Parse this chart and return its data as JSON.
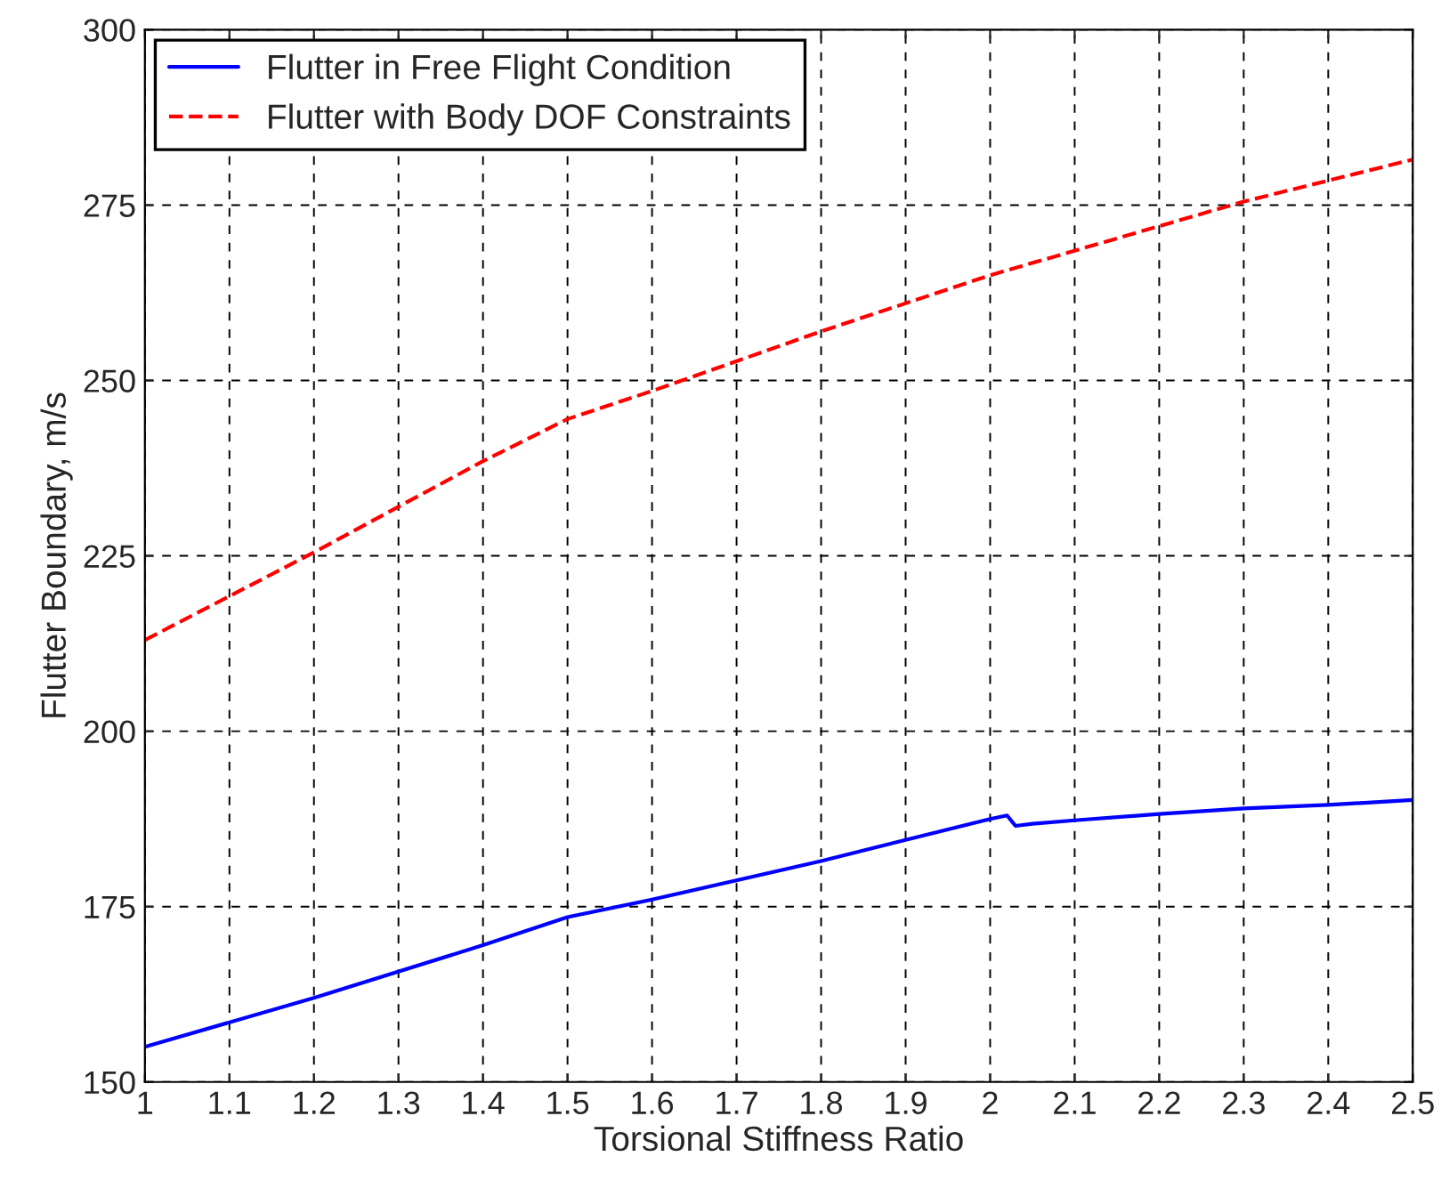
{
  "chart_data": {
    "type": "line",
    "xlabel": "Torsional Stiffness Ratio",
    "ylabel": "Flutter Boundary, m/s",
    "series": [
      {
        "name": "Flutter in Free Flight Condition",
        "color": "#0000ff",
        "line_style": "solid",
        "x": [
          1.0,
          1.2,
          1.4,
          1.5,
          1.6,
          1.8,
          2.0,
          2.02,
          2.03,
          2.05,
          2.1,
          2.2,
          2.3,
          2.4,
          2.5
        ],
        "values": [
          155,
          162,
          169.5,
          173.5,
          176,
          181.5,
          187.5,
          188,
          186.5,
          186.8,
          187.3,
          188.2,
          189,
          189.5,
          190.2
        ]
      },
      {
        "name": "Flutter with Body DOF Constraints",
        "color": "#ff0000",
        "line_style": "dashed",
        "x": [
          1.0,
          1.2,
          1.4,
          1.5,
          1.6,
          1.8,
          2.0,
          2.1,
          2.2,
          2.3,
          2.4,
          2.5
        ],
        "values": [
          213,
          225.5,
          238.5,
          244.5,
          248.5,
          257,
          265,
          268.5,
          272,
          275.5,
          278.5,
          281.5
        ]
      }
    ],
    "xlim": [
      1,
      2.5
    ],
    "xticks": [
      1,
      1.1,
      1.2,
      1.3,
      1.4,
      1.5,
      1.6,
      1.7,
      1.8,
      1.9,
      2,
      2.1,
      2.2,
      2.3,
      2.4,
      2.5
    ],
    "ylim": [
      150,
      300
    ],
    "yticks": [
      150,
      175,
      200,
      225,
      250,
      275,
      300
    ],
    "grid": true,
    "legend": "top left",
    "marker": "none"
  }
}
